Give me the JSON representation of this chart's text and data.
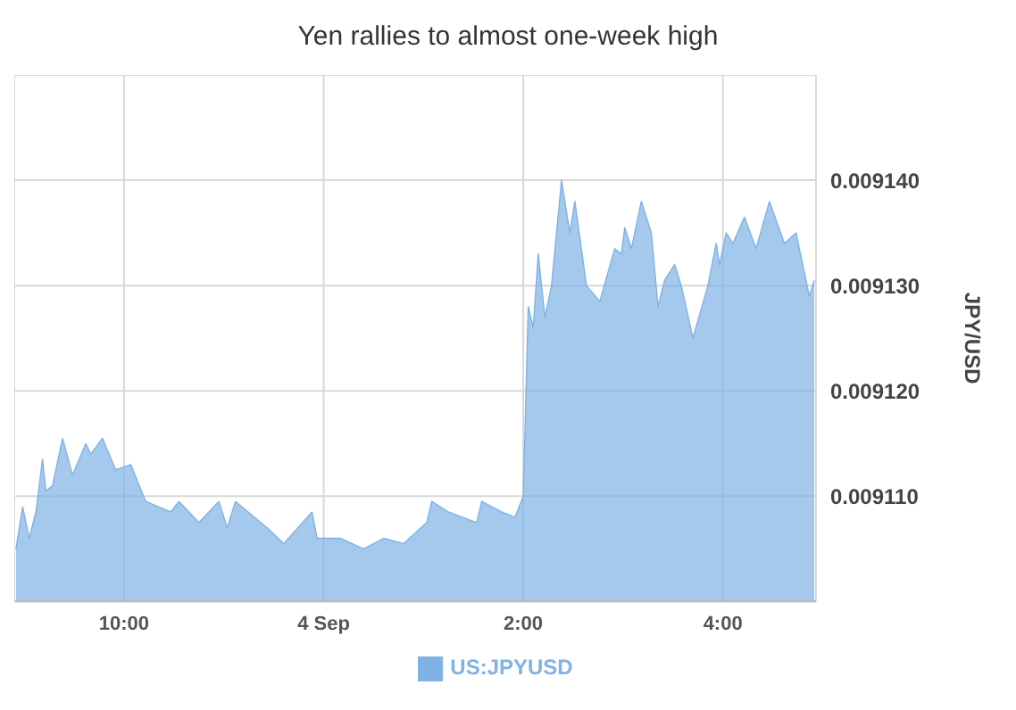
{
  "chart_data": {
    "type": "area",
    "title": "Yen rallies to almost one-week high",
    "ylabel": "JPY/USD",
    "x": [
      "--09-03T20:55",
      "--09-03T20:59",
      "--09-03T21:03",
      "--09-03T21:07",
      "--09-03T21:11",
      "--09-03T21:13",
      "--09-03T21:17",
      "--09-03T21:23",
      "--09-03T21:29",
      "--09-03T21:37",
      "--09-03T21:40",
      "--09-03T21:47",
      "--09-03T21:55",
      "--09-03T22:04",
      "--09-03T22:13",
      "--09-03T22:28",
      "--09-03T22:33",
      "--09-03T22:45",
      "--09-03T22:57",
      "--09-03T23:02",
      "--09-03T23:07",
      "--09-03T23:26",
      "--09-03T23:36",
      "--09-03T23:53",
      "--09-03T23:56",
      "--09-04T00:10",
      "--09-04T00:24",
      "--09-04T00:36",
      "--09-04T00:48",
      "--09-04T01:02",
      "--09-04T01:05",
      "--09-04T01:15",
      "--09-04T01:32",
      "--09-04T01:35",
      "--09-04T01:47",
      "--09-04T01:55",
      "--09-04T02:00",
      "--09-04T02:03",
      "--09-04T02:06",
      "--09-04T02:09",
      "--09-04T02:13",
      "--09-04T02:17",
      "--09-04T02:23",
      "--09-04T02:28",
      "--09-04T02:31",
      "--09-04T02:38",
      "--09-04T02:46",
      "--09-04T02:55",
      "--09-04T02:59",
      "--09-04T03:01",
      "--09-04T03:05",
      "--09-04T03:11",
      "--09-04T03:17",
      "--09-04T03:21",
      "--09-04T03:25",
      "--09-04T03:31",
      "--09-04T03:35",
      "--09-04T03:42",
      "--09-04T03:51",
      "--09-04T03:56",
      "--09-04T03:58",
      "--09-04T04:02",
      "--09-04T04:06",
      "--09-04T04:13",
      "--09-04T04:20",
      "--09-04T04:28",
      "--09-04T04:37",
      "--09-04T04:44",
      "--09-04T04:52",
      "--09-04T04:55"
    ],
    "series": [
      {
        "name": "US:JPYUSD",
        "color": "#7fb2e5",
        "values": [
          0.009105,
          0.009109,
          0.009106,
          0.0091085,
          0.0091135,
          0.0091105,
          0.009111,
          0.0091155,
          0.009112,
          0.009115,
          0.009114,
          0.0091155,
          0.0091125,
          0.009113,
          0.0091095,
          0.0091085,
          0.0091095,
          0.0091075,
          0.0091095,
          0.009107,
          0.0091095,
          0.009107,
          0.0091055,
          0.0091085,
          0.009106,
          0.009106,
          0.009105,
          0.009106,
          0.0091055,
          0.0091075,
          0.0091095,
          0.0091085,
          0.0091075,
          0.0091095,
          0.0091085,
          0.009108,
          0.00911,
          0.009128,
          0.009126,
          0.009133,
          0.009127,
          0.00913,
          0.00914,
          0.009135,
          0.009138,
          0.00913,
          0.0091285,
          0.0091335,
          0.009133,
          0.0091355,
          0.0091335,
          0.009138,
          0.009135,
          0.009128,
          0.0091305,
          0.009132,
          0.00913,
          0.009125,
          0.00913,
          0.009134,
          0.009132,
          0.009135,
          0.009134,
          0.0091365,
          0.0091335,
          0.009138,
          0.009134,
          0.009135,
          0.009129,
          0.0091305
        ]
      }
    ],
    "xlim": [
      "--09-03T20:54",
      "--09-04T04:56"
    ],
    "xticks": [
      {
        "value": "--09-03T22:00",
        "label": "10:00"
      },
      {
        "value": "--09-04T00:00",
        "label": "4 Sep"
      },
      {
        "value": "--09-04T02:00",
        "label": "2:00"
      },
      {
        "value": "--09-04T04:00",
        "label": "4:00"
      }
    ],
    "ylim": [
      0.0091,
      0.00915
    ],
    "yticks": [
      {
        "value": 0.00911,
        "label": "0.009110"
      },
      {
        "value": 0.00912,
        "label": "0.009120"
      },
      {
        "value": 0.00913,
        "label": "0.009130"
      },
      {
        "value": 0.00914,
        "label": "0.009140"
      }
    ],
    "grid": true,
    "legend": "bottom",
    "marker": "none",
    "line_style": "solid"
  }
}
